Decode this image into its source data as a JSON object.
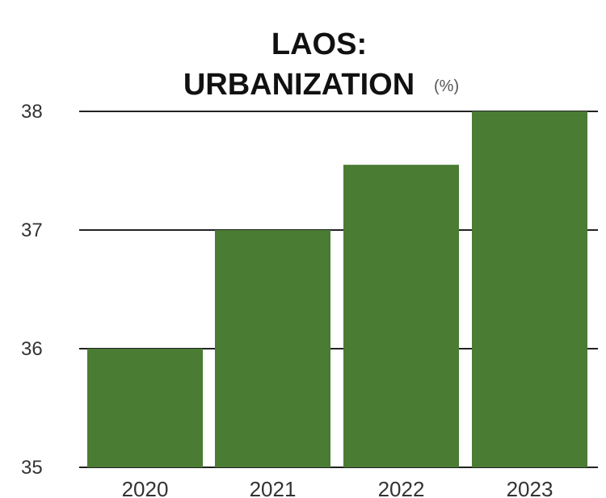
{
  "chart_data": {
    "type": "bar",
    "title_line1": "LAOS:",
    "title_line2": "URBANIZATION",
    "unit": "(%)",
    "categories": [
      "2020",
      "2021",
      "2022",
      "2023"
    ],
    "values": [
      36.0,
      37.0,
      37.55,
      38.0
    ],
    "ylim": [
      35,
      38
    ],
    "yticks": [
      "35",
      "36",
      "37",
      "38"
    ],
    "bar_color": "#4a7c33",
    "grid": true
  }
}
